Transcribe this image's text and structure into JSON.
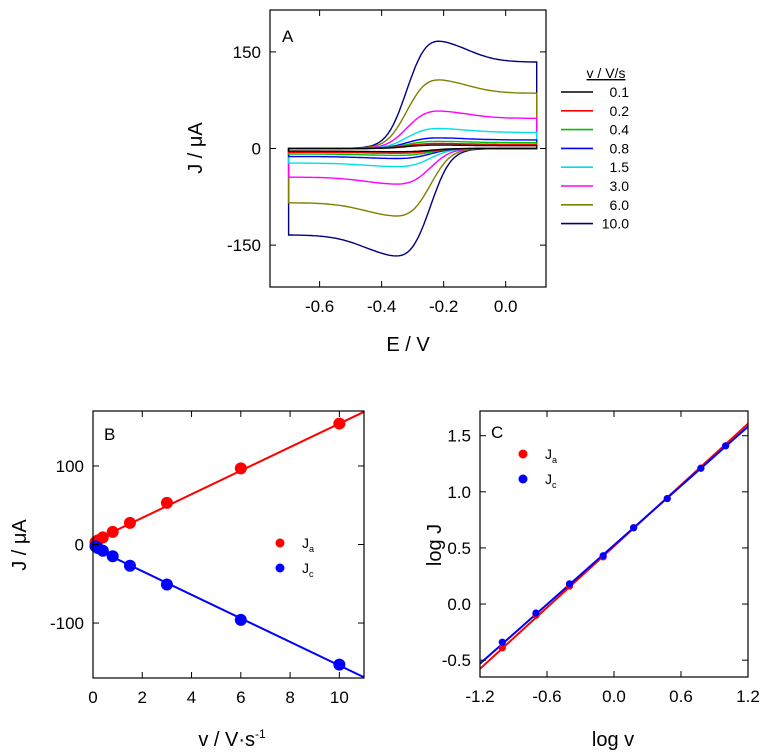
{
  "chart_data": [
    {
      "type": "line",
      "panel_label": "A",
      "xlabel": "E / V",
      "ylabel": "J / μA",
      "xlim": [
        -0.76,
        0.13
      ],
      "ylim": [
        -215,
        215
      ],
      "xticks": [
        -0.6,
        -0.4,
        -0.2,
        0.0
      ],
      "xtick_labels": [
        "-0.6",
        "-0.4",
        "-0.2",
        "0.0"
      ],
      "yticks": [
        -150,
        0,
        150
      ],
      "ytick_labels": [
        "-150",
        "0",
        "150"
      ],
      "legend_title": "v / V/s",
      "legend_position": "right-outside",
      "series": [
        {
          "name": "0.1",
          "scan_rate": 0.1,
          "anodic_peak": 5.5,
          "cathodic_peak": -5.2,
          "color": "#000000"
        },
        {
          "name": "0.2",
          "scan_rate": 0.2,
          "anodic_peak": 8,
          "cathodic_peak": -7.5,
          "color": "#ff0000"
        },
        {
          "name": "0.4",
          "scan_rate": 0.4,
          "anodic_peak": 11.5,
          "cathodic_peak": -11,
          "color": "#00c000"
        },
        {
          "name": "0.8",
          "scan_rate": 0.8,
          "anodic_peak": 17,
          "cathodic_peak": -16,
          "color": "#0000ff"
        },
        {
          "name": "1.5",
          "scan_rate": 1.5,
          "anodic_peak": 32,
          "cathodic_peak": -29,
          "color": "#00e0e0"
        },
        {
          "name": "3.0",
          "scan_rate": 3.0,
          "anodic_peak": 60,
          "cathodic_peak": -57,
          "color": "#ff00ff"
        },
        {
          "name": "6.0",
          "scan_rate": 6.0,
          "anodic_peak": 110,
          "cathodic_peak": -108,
          "color": "#808000"
        },
        {
          "name": "10.0",
          "scan_rate": 10.0,
          "anodic_peak": 172,
          "cathodic_peak": -172,
          "color": "#000080"
        }
      ],
      "E_start": -0.7,
      "E_switch": 0.1,
      "Epa": -0.235,
      "Epc": -0.33
    },
    {
      "type": "scatter",
      "panel_label": "B",
      "xlabel": "v / V·s",
      "xlabel_sup": "-1",
      "ylabel": "J / μA",
      "xlim": [
        0,
        11
      ],
      "ylim": [
        -170,
        170
      ],
      "xticks": [
        0,
        2,
        4,
        6,
        8,
        10
      ],
      "xtick_labels": [
        "0",
        "2",
        "4",
        "6",
        "8",
        "10"
      ],
      "yticks": [
        -100,
        0,
        100
      ],
      "ytick_labels": [
        "-100",
        "0",
        "100"
      ],
      "legend_position": "center-right",
      "series": [
        {
          "name": "J",
          "sub": "a",
          "color": "#ff0000",
          "x": [
            0.1,
            0.2,
            0.4,
            0.8,
            1.5,
            3.0,
            6.0,
            10.0
          ],
          "y": [
            2.7,
            5.2,
            9.0,
            16,
            27.5,
            53,
            97,
            154
          ],
          "fit": {
            "slope": 15.0,
            "intercept": 4.0
          }
        },
        {
          "name": "J",
          "sub": "c",
          "color": "#0000ff",
          "x": [
            0.1,
            0.2,
            0.4,
            0.8,
            1.5,
            3.0,
            6.0,
            10.0
          ],
          "y": [
            -2.2,
            -4.4,
            -8.0,
            -15,
            -27,
            -51,
            -96,
            -153
          ],
          "fit": {
            "slope": -15.0,
            "intercept": -4.0
          }
        }
      ]
    },
    {
      "type": "scatter",
      "panel_label": "C",
      "xlabel": "log v",
      "ylabel": "log J",
      "xlim": [
        -1.2,
        1.2
      ],
      "ylim": [
        -0.65,
        1.72
      ],
      "xticks": [
        -1.2,
        -0.6,
        0.0,
        0.6,
        1.2
      ],
      "xtick_labels": [
        "-1.2",
        "-0.6",
        "0.0",
        "0.6",
        "1.2"
      ],
      "yticks": [
        -0.5,
        0.0,
        0.5,
        1.0,
        1.5
      ],
      "ytick_labels": [
        "-0.5",
        "0.0",
        "0.5",
        "1.0",
        "1.5"
      ],
      "legend_position": "top-left",
      "series": [
        {
          "name": "J",
          "sub": "a",
          "color": "#ff0000",
          "x": [
            -1.0,
            -0.699,
            -0.398,
            -0.097,
            0.176,
            0.477,
            0.778,
            1.0
          ],
          "y": [
            -0.39,
            -0.1,
            0.16,
            0.42,
            0.68,
            0.94,
            1.21,
            1.41
          ],
          "fit": {
            "slope": 0.91,
            "intercept": 0.515
          }
        },
        {
          "name": "J",
          "sub": "c",
          "color": "#0000ff",
          "x": [
            -1.0,
            -0.699,
            -0.398,
            -0.097,
            0.176,
            0.477,
            0.778,
            1.0
          ],
          "y": [
            -0.34,
            -0.08,
            0.18,
            0.43,
            0.68,
            0.94,
            1.21,
            1.41
          ],
          "fit": {
            "slope": 0.88,
            "intercept": 0.525
          }
        }
      ]
    }
  ]
}
